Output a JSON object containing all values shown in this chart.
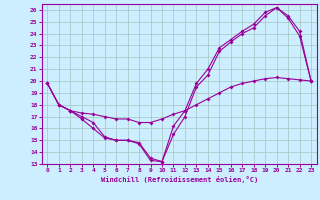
{
  "xlabel": "Windchill (Refroidissement éolien,°C)",
  "bg_color": "#cceeff",
  "grid_color": "#aacccc",
  "line_color": "#990099",
  "xlim": [
    -0.5,
    23.5
  ],
  "ylim": [
    13,
    26.5
  ],
  "yticks": [
    13,
    14,
    15,
    16,
    17,
    18,
    19,
    20,
    21,
    22,
    23,
    24,
    25,
    26
  ],
  "xticks": [
    0,
    1,
    2,
    3,
    4,
    5,
    6,
    7,
    8,
    9,
    10,
    11,
    12,
    13,
    14,
    15,
    16,
    17,
    18,
    19,
    20,
    21,
    22,
    23
  ],
  "line1_x": [
    0,
    1,
    2,
    3,
    4,
    5,
    6,
    7,
    8,
    9,
    10,
    11,
    12,
    13,
    14,
    15,
    16,
    17,
    18,
    19,
    20,
    21,
    22,
    23
  ],
  "line1_y": [
    19.8,
    18.0,
    17.5,
    16.8,
    16.0,
    15.2,
    15.0,
    15.0,
    14.8,
    13.5,
    13.2,
    15.5,
    17.0,
    19.5,
    20.5,
    22.5,
    23.3,
    24.0,
    24.5,
    25.5,
    26.2,
    25.5,
    24.2,
    20.0
  ],
  "line2_x": [
    0,
    1,
    2,
    3,
    4,
    5,
    6,
    7,
    8,
    9,
    10,
    11,
    12,
    13,
    14,
    15,
    16,
    17,
    18,
    19,
    20,
    21,
    22,
    23
  ],
  "line2_y": [
    19.8,
    18.0,
    17.5,
    17.0,
    16.5,
    15.3,
    15.0,
    15.0,
    14.7,
    13.3,
    13.2,
    16.2,
    17.5,
    19.8,
    21.0,
    22.8,
    23.5,
    24.2,
    24.8,
    25.8,
    26.2,
    25.3,
    23.8,
    20.0
  ],
  "line3_x": [
    0,
    1,
    2,
    3,
    4,
    5,
    6,
    7,
    8,
    9,
    10,
    11,
    12,
    13,
    14,
    15,
    16,
    17,
    18,
    19,
    20,
    21,
    22,
    23
  ],
  "line3_y": [
    19.8,
    18.0,
    17.5,
    17.3,
    17.2,
    17.0,
    16.8,
    16.8,
    16.5,
    16.5,
    16.8,
    17.2,
    17.5,
    18.0,
    18.5,
    19.0,
    19.5,
    19.8,
    20.0,
    20.2,
    20.3,
    20.2,
    20.1,
    20.0
  ]
}
